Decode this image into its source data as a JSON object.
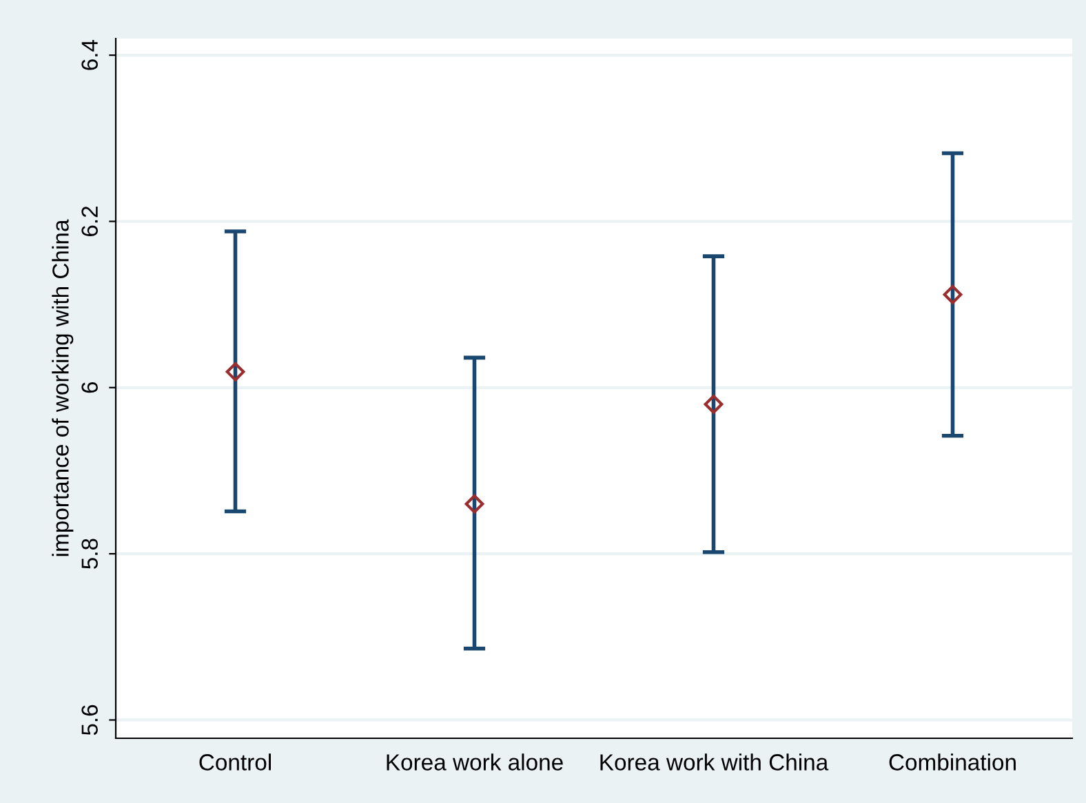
{
  "chart_data": {
    "type": "scatter",
    "ylabel": "importance of working with China",
    "categories": [
      "Control",
      "Korea work alone",
      "Korea work with China",
      "Combination"
    ],
    "series": [
      {
        "color": "#9b2d2f",
        "values": [
          6.019,
          5.86,
          5.98,
          6.112
        ],
        "errors": [
          [
            5.851,
            6.188
          ],
          [
            5.686,
            6.036
          ],
          [
            5.802,
            6.158
          ],
          [
            5.942,
            6.282
          ]
        ]
      }
    ],
    "marker": "diamond",
    "ylim": [
      5.578,
      6.42
    ],
    "yticks": [
      5.6,
      5.8,
      6,
      6.2,
      6.4
    ],
    "grid": "y",
    "legend": false
  }
}
